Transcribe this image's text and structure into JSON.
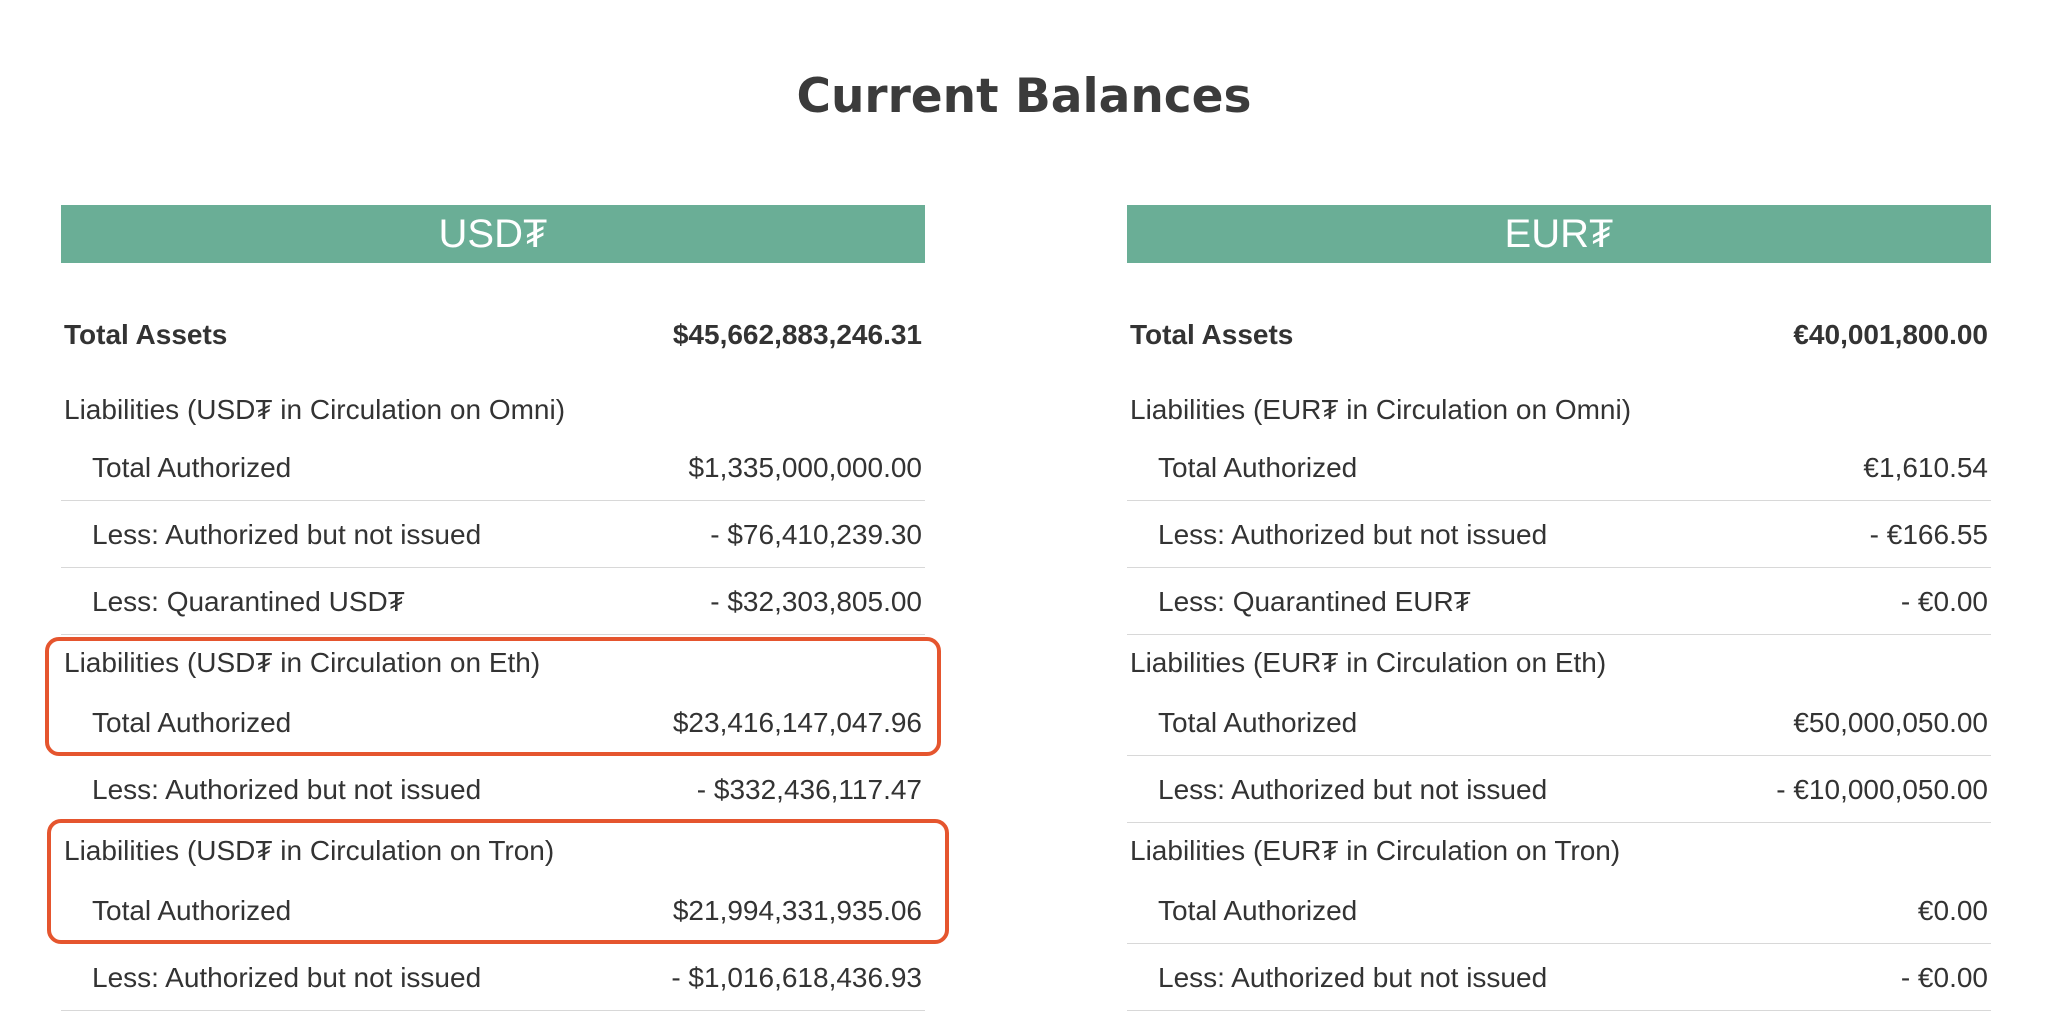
{
  "page": {
    "title": "Current Balances"
  },
  "usd": {
    "header": "USD₮",
    "total_assets_label": "Total Assets",
    "total_assets_value": "$45,662,883,246.31",
    "omni_heading": "Liabilities (USD₮ in Circulation on Omni)",
    "omni_total_authorized_label": "Total Authorized",
    "omni_total_authorized_value": "$1,335,000,000.00",
    "omni_not_issued_label": "Less: Authorized but not issued",
    "omni_not_issued_value": "- $76,410,239.30",
    "omni_quarantined_label": "Less: Quarantined USD₮",
    "omni_quarantined_value": "- $32,303,805.00",
    "eth_heading": "Liabilities (USD₮ in Circulation on Eth)",
    "eth_total_authorized_label": "Total Authorized",
    "eth_total_authorized_value": "$23,416,147,047.96",
    "eth_not_issued_label": "Less: Authorized but not issued",
    "eth_not_issued_value": "- $332,436,117.47",
    "tron_heading": "Liabilities (USD₮ in Circulation on Tron)",
    "tron_total_authorized_label": "Total Authorized",
    "tron_total_authorized_value": "$21,994,331,935.06",
    "tron_not_issued_label": "Less: Authorized but not issued",
    "tron_not_issued_value": "- $1,016,618,436.93"
  },
  "eur": {
    "header": "EUR₮",
    "total_assets_label": "Total Assets",
    "total_assets_value": "€40,001,800.00",
    "omni_heading": "Liabilities (EUR₮ in Circulation on Omni)",
    "omni_total_authorized_label": "Total Authorized",
    "omni_total_authorized_value": "€1,610.54",
    "omni_not_issued_label": "Less: Authorized but not issued",
    "omni_not_issued_value": "- €166.55",
    "omni_quarantined_label": "Less: Quarantined EUR₮",
    "omni_quarantined_value": "- €0.00",
    "eth_heading": "Liabilities (EUR₮ in Circulation on Eth)",
    "eth_total_authorized_label": "Total Authorized",
    "eth_total_authorized_value": "€50,000,050.00",
    "eth_not_issued_label": "Less: Authorized but not issued",
    "eth_not_issued_value": "- €10,000,050.00",
    "tron_heading": "Liabilities (EUR₮ in Circulation on Tron)",
    "tron_total_authorized_label": "Total Authorized",
    "tron_total_authorized_value": "€0.00",
    "tron_not_issued_label": "Less: Authorized but not issued",
    "tron_not_issued_value": "- €0.00"
  },
  "colors": {
    "header_bg": "#6aae96",
    "highlight_border": "#e5552e",
    "text": "#333333"
  }
}
